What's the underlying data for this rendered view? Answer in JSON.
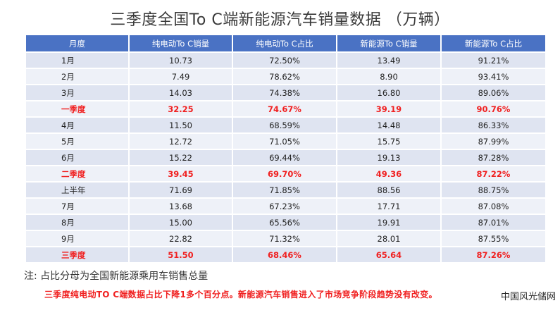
{
  "title": "三季度全国To C端新能源汽车销量数据 （万辆）",
  "table": {
    "headers": [
      "月度",
      "纯电动To C销量",
      "纯电动To C占比",
      "新能源To C销量",
      "新能源To C占比"
    ],
    "rows": [
      {
        "month": "1月",
        "bev_sales": "10.73",
        "bev_share": "72.50%",
        "nev_sales": "13.49",
        "nev_share": "91.21%",
        "quarter": false
      },
      {
        "month": "2月",
        "bev_sales": "7.49",
        "bev_share": "78.62%",
        "nev_sales": "8.90",
        "nev_share": "93.41%",
        "quarter": false
      },
      {
        "month": "3月",
        "bev_sales": "14.03",
        "bev_share": "74.38%",
        "nev_sales": "16.80",
        "nev_share": "89.06%",
        "quarter": false
      },
      {
        "month": "一季度",
        "bev_sales": "32.25",
        "bev_share": "74.67%",
        "nev_sales": "39.19",
        "nev_share": "90.76%",
        "quarter": true
      },
      {
        "month": "4月",
        "bev_sales": "11.50",
        "bev_share": "68.59%",
        "nev_sales": "14.48",
        "nev_share": "86.33%",
        "quarter": false
      },
      {
        "month": "5月",
        "bev_sales": "12.72",
        "bev_share": "71.05%",
        "nev_sales": "15.75",
        "nev_share": "87.99%",
        "quarter": false
      },
      {
        "month": "6月",
        "bev_sales": "15.22",
        "bev_share": "69.44%",
        "nev_sales": "19.13",
        "nev_share": "87.28%",
        "quarter": false
      },
      {
        "month": "二季度",
        "bev_sales": "39.45",
        "bev_share": "69.70%",
        "nev_sales": "49.36",
        "nev_share": "87.22%",
        "quarter": true
      },
      {
        "month": "上半年",
        "bev_sales": "71.69",
        "bev_share": "71.85%",
        "nev_sales": "88.56",
        "nev_share": "88.75%",
        "quarter": false
      },
      {
        "month": "7月",
        "bev_sales": "13.68",
        "bev_share": "67.23%",
        "nev_sales": "17.71",
        "nev_share": "87.08%",
        "quarter": false
      },
      {
        "month": "8月",
        "bev_sales": "15.00",
        "bev_share": "65.56%",
        "nev_sales": "19.91",
        "nev_share": "87.01%",
        "quarter": false
      },
      {
        "month": "9月",
        "bev_sales": "22.82",
        "bev_share": "71.32%",
        "nev_sales": "28.01",
        "nev_share": "87.55%",
        "quarter": false
      },
      {
        "month": "三季度",
        "bev_sales": "51.50",
        "bev_share": "68.46%",
        "nev_sales": "65.64",
        "nev_share": "87.26%",
        "quarter": true
      }
    ]
  },
  "note": "注:  占比分母为全国新能源乘用车销售总量",
  "highlight": "三季度纯电动TO C端数据占比下降1多个百分点。新能源汽车销售进入了市场竞争阶段趋势没有改变。",
  "watermark": "中国风光储网",
  "colors": {
    "header_bg": "#4a72c4",
    "row_even": "#dfe4f1",
    "row_odd": "#eef1f8",
    "emphasis": "#f02020"
  }
}
